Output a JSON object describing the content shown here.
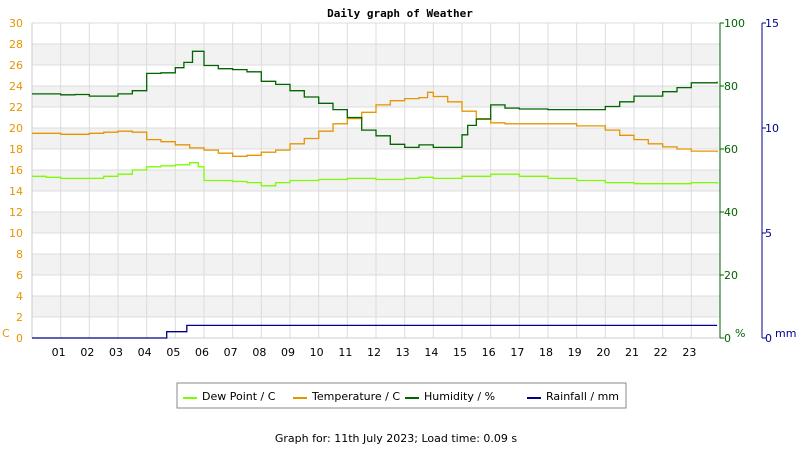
{
  "chart_data": {
    "type": "line",
    "title": "Daily graph of Weather",
    "footer": "Graph for: 11th July 2023; Load time: 0.09 s",
    "x_ticks": [
      "01",
      "02",
      "03",
      "04",
      "05",
      "06",
      "07",
      "08",
      "09",
      "10",
      "11",
      "12",
      "13",
      "14",
      "15",
      "16",
      "17",
      "18",
      "19",
      "20",
      "21",
      "22",
      "23"
    ],
    "xlim": [
      0,
      24
    ],
    "axes": {
      "left": {
        "unit": "C",
        "ylim": [
          0,
          30
        ],
        "ticks": [
          0,
          2,
          4,
          6,
          8,
          10,
          12,
          14,
          16,
          18,
          20,
          22,
          24,
          26,
          28,
          30
        ],
        "color": "#e69500"
      },
      "humidity": {
        "unit": "%",
        "ylim": [
          0,
          100
        ],
        "ticks": [
          0,
          20,
          40,
          60,
          80,
          100
        ],
        "color": "#006400"
      },
      "rain": {
        "unit": "mm",
        "ylim": [
          0,
          15
        ],
        "ticks": [
          0,
          5,
          10,
          15
        ],
        "color": "#00008b"
      }
    },
    "grid": true,
    "legend_position": "bottom",
    "series": [
      {
        "name": "Dew Point / C",
        "axis": "left",
        "color": "#7cfc00",
        "x": [
          0,
          0.5,
          1,
          2,
          2.5,
          3,
          3.5,
          4,
          4.5,
          5,
          5.5,
          5.8,
          6,
          7,
          7.5,
          8,
          8.5,
          9,
          10,
          11,
          12,
          13,
          13.5,
          14,
          15,
          16,
          17,
          18,
          19,
          20,
          21,
          22,
          23,
          23.9
        ],
        "y": [
          15.4,
          15.3,
          15.2,
          15.2,
          15.4,
          15.6,
          16.0,
          16.3,
          16.4,
          16.5,
          16.7,
          16.3,
          15.0,
          14.9,
          14.8,
          14.5,
          14.8,
          15.0,
          15.1,
          15.2,
          15.1,
          15.2,
          15.3,
          15.2,
          15.4,
          15.6,
          15.4,
          15.2,
          15.0,
          14.8,
          14.7,
          14.7,
          14.8,
          14.7
        ]
      },
      {
        "name": "Temperature / C",
        "axis": "left",
        "color": "#e69500",
        "x": [
          0,
          1,
          2,
          2.5,
          3,
          3.5,
          4,
          4.5,
          5,
          5.5,
          6,
          6.5,
          7,
          7.5,
          8,
          8.5,
          9,
          9.5,
          10,
          10.5,
          11,
          11.5,
          12,
          12.5,
          13,
          13.5,
          13.8,
          14,
          14.5,
          15,
          15.5,
          16,
          16.5,
          17,
          18,
          19,
          20,
          20.5,
          21,
          21.5,
          22,
          22.5,
          23,
          23.9
        ],
        "y": [
          19.5,
          19.4,
          19.5,
          19.6,
          19.7,
          19.6,
          18.9,
          18.7,
          18.4,
          18.1,
          17.9,
          17.6,
          17.3,
          17.4,
          17.7,
          17.9,
          18.5,
          19.0,
          19.7,
          20.4,
          20.9,
          21.5,
          22.2,
          22.6,
          22.8,
          22.9,
          23.4,
          23.0,
          22.5,
          21.6,
          20.9,
          20.5,
          20.4,
          20.4,
          20.4,
          20.2,
          19.8,
          19.3,
          18.9,
          18.5,
          18.2,
          18.0,
          17.8,
          17.7
        ]
      },
      {
        "name": "Humidity / %",
        "axis": "humidity",
        "color": "#006400",
        "x": [
          0,
          1,
          1.5,
          2,
          3,
          3.5,
          4,
          4.5,
          5,
          5.3,
          5.6,
          6,
          6.5,
          7,
          7.5,
          8,
          8.5,
          9,
          9.5,
          10,
          10.5,
          11,
          11.5,
          12,
          12.5,
          13,
          13.5,
          14,
          14.5,
          15,
          15.2,
          15.5,
          16,
          16.5,
          17,
          18,
          19,
          20,
          20.5,
          21,
          22,
          22.5,
          23,
          23.9
        ],
        "y": [
          77.5,
          77.2,
          77.3,
          76.8,
          77.5,
          78.5,
          84.0,
          84.2,
          85.8,
          87.5,
          91.0,
          86.5,
          85.5,
          85.2,
          84.5,
          81.5,
          80.5,
          78.5,
          76.5,
          74.5,
          72.5,
          70.0,
          66.0,
          64.2,
          61.5,
          60.5,
          61.3,
          60.5,
          60.5,
          64.5,
          67.5,
          69.5,
          74.0,
          73.0,
          72.7,
          72.5,
          72.5,
          73.5,
          75.0,
          76.8,
          78.2,
          79.5,
          81.0,
          81.4
        ]
      },
      {
        "name": "Rainfall / mm",
        "axis": "rain",
        "color": "#00008b",
        "x": [
          0,
          4.7,
          4.7,
          5.4,
          5.4,
          23.9
        ],
        "y": [
          0,
          0,
          0.3,
          0.3,
          0.6,
          0.6
        ]
      }
    ]
  }
}
